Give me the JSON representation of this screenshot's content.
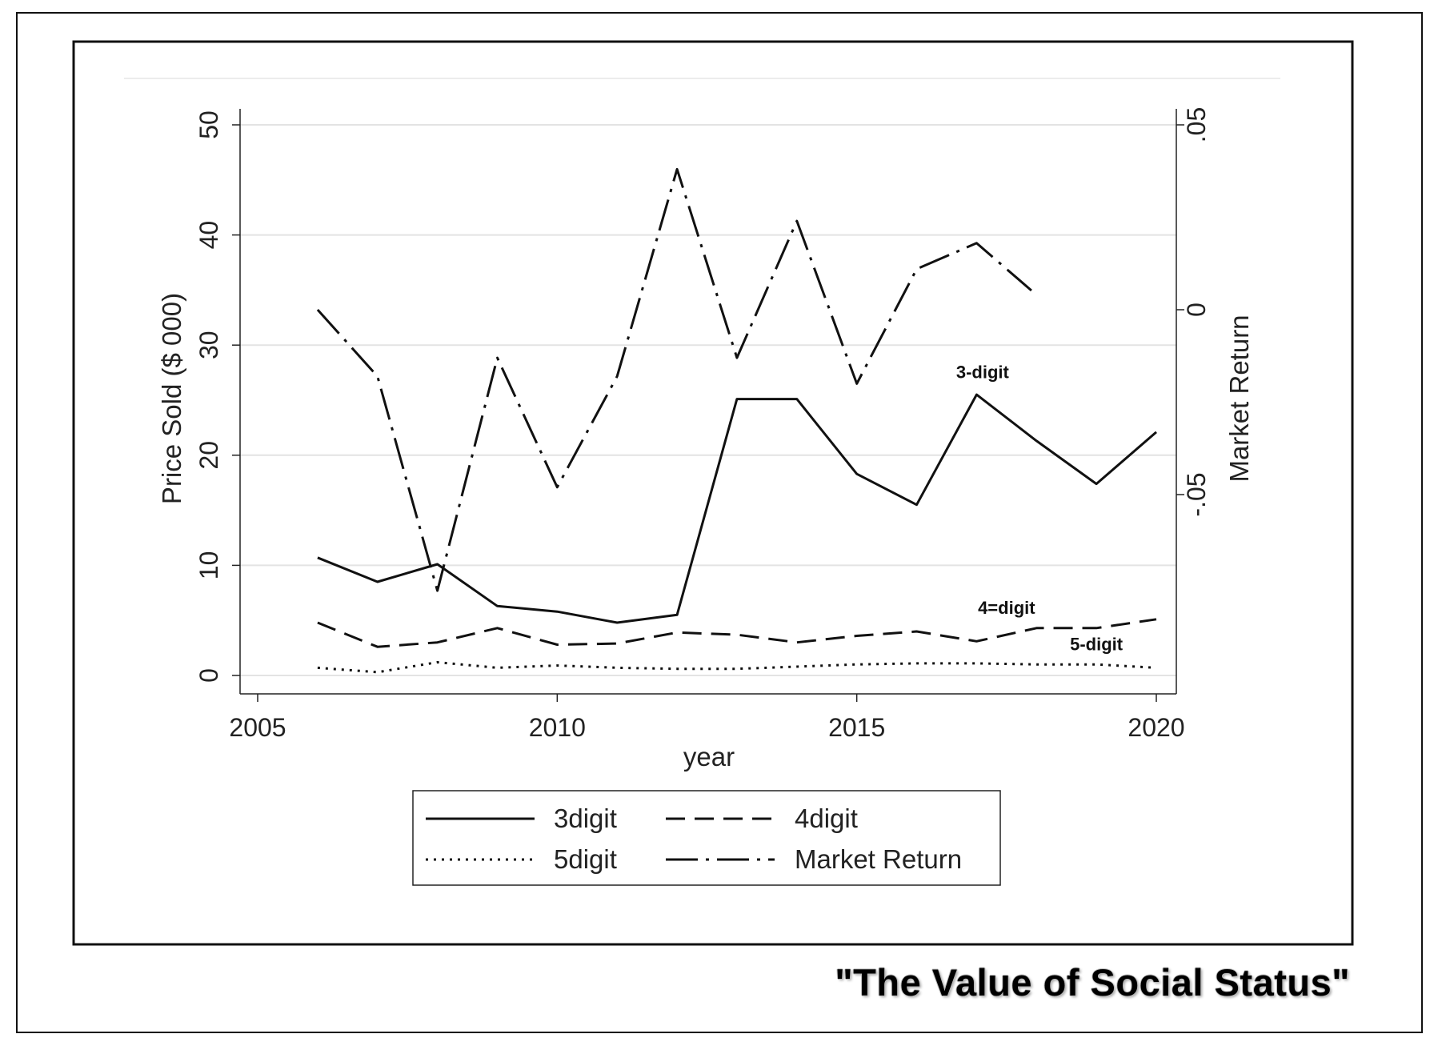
{
  "caption": "\"The Value of Social Status\"",
  "chart_data": {
    "type": "line",
    "xlabel": "year",
    "ylabel": "Price Sold ($ 000)",
    "y2label": "Market Return",
    "xlim": [
      2005,
      2020
    ],
    "ylim": [
      0,
      50
    ],
    "y2lim": [
      -0.1,
      0.05
    ],
    "xticks": [
      2005,
      2010,
      2015,
      2020
    ],
    "yticks": [
      0,
      10,
      20,
      30,
      40,
      50
    ],
    "y2ticks": [
      -0.05,
      0,
      0.05
    ],
    "xtick_labels": [
      "2005",
      "2010",
      "2015",
      "2020"
    ],
    "ytick_labels": [
      "0",
      "10",
      "20",
      "30",
      "40",
      "50"
    ],
    "y2tick_labels": [
      "-.05",
      "0",
      ".05"
    ],
    "grid": true,
    "legend_placement": "bottom",
    "x": [
      2006,
      2007,
      2008,
      2009,
      2010,
      2011,
      2012,
      2013,
      2014,
      2015,
      2016,
      2017,
      2018,
      2019,
      2020
    ],
    "series": [
      {
        "name": "3digit",
        "axis": "left",
        "style": "solid",
        "values": [
          10.7,
          8.5,
          10.1,
          6.3,
          5.8,
          4.8,
          5.5,
          25.1,
          25.1,
          18.3,
          15.5,
          25.5,
          21.3,
          17.4,
          22.1
        ]
      },
      {
        "name": "4digit",
        "axis": "left",
        "style": "dash",
        "values": [
          4.8,
          2.6,
          3.0,
          4.3,
          2.8,
          2.9,
          3.9,
          3.7,
          3.0,
          3.6,
          4.0,
          3.1,
          4.3,
          4.3,
          5.1
        ]
      },
      {
        "name": "5digit",
        "axis": "left",
        "style": "dot",
        "values": [
          0.7,
          0.3,
          1.2,
          0.7,
          0.9,
          0.7,
          0.6,
          0.6,
          0.8,
          1.0,
          1.1,
          1.1,
          1.0,
          1.0,
          0.7
        ]
      },
      {
        "name": "Market Return",
        "axis": "right",
        "style": "dashdot",
        "values": [
          0.0,
          -0.018,
          -0.076,
          -0.013,
          -0.048,
          -0.018,
          0.038,
          -0.013,
          0.024,
          -0.02,
          0.011,
          0.018,
          0.004,
          null,
          null
        ]
      }
    ],
    "annotations": [
      {
        "text": "3-digit",
        "x": 2017.1,
        "y": 27
      },
      {
        "text": "4=digit",
        "x": 2017.5,
        "y": 5.6
      },
      {
        "text": "5-digit",
        "x": 2019.0,
        "y": 2.3
      }
    ]
  }
}
